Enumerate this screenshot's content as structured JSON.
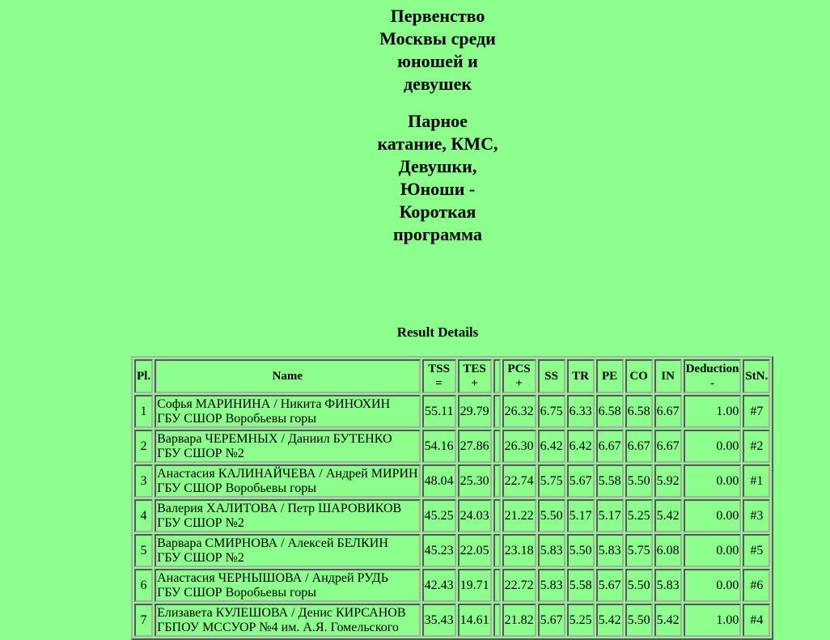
{
  "title": "Первенство Москвы среди юношей и девушек",
  "subtitle": "Парное катание, КМС, Девушки, Юноши - Короткая программа",
  "section": "Result Details",
  "columns": [
    {
      "label": "Pl.",
      "sub": ""
    },
    {
      "label": "Name",
      "sub": ""
    },
    {
      "label": "TSS",
      "sub": "="
    },
    {
      "label": "TES",
      "sub": "+"
    },
    {
      "label": "",
      "sub": ""
    },
    {
      "label": "PCS",
      "sub": "+"
    },
    {
      "label": "SS",
      "sub": ""
    },
    {
      "label": "TR",
      "sub": ""
    },
    {
      "label": "PE",
      "sub": ""
    },
    {
      "label": "CO",
      "sub": ""
    },
    {
      "label": "IN",
      "sub": ""
    },
    {
      "label": "Deduction",
      "sub": "-"
    },
    {
      "label": "StN.",
      "sub": ""
    }
  ],
  "rows": [
    {
      "pl": "1",
      "name": "Софья МАРИНИНА / Никита ФИНОХИН",
      "club": "ГБУ СШОР Воробьевы горы",
      "tss": "55.11",
      "tes": "29.79",
      "pcs": "26.32",
      "ss": "6.75",
      "tr": "6.33",
      "pe": "6.58",
      "co": "6.58",
      "in": "6.67",
      "ded": "1.00",
      "stn": "#7"
    },
    {
      "pl": "2",
      "name": "Варвара ЧЕРЕМНЫХ / Даниил БУТЕНКО",
      "club": "ГБУ СШОР №2",
      "tss": "54.16",
      "tes": "27.86",
      "pcs": "26.30",
      "ss": "6.42",
      "tr": "6.42",
      "pe": "6.67",
      "co": "6.67",
      "in": "6.67",
      "ded": "0.00",
      "stn": "#2"
    },
    {
      "pl": "3",
      "name": "Анастасия КАЛИНАЙЧЕВА / Андрей МИРИН",
      "club": "ГБУ СШОР Воробьевы горы",
      "tss": "48.04",
      "tes": "25.30",
      "pcs": "22.74",
      "ss": "5.75",
      "tr": "5.67",
      "pe": "5.58",
      "co": "5.50",
      "in": "5.92",
      "ded": "0.00",
      "stn": "#1"
    },
    {
      "pl": "4",
      "name": "Валерия ХАЛИТОВА / Петр ШАРОВИКОВ",
      "club": "ГБУ СШОР №2",
      "tss": "45.25",
      "tes": "24.03",
      "pcs": "21.22",
      "ss": "5.50",
      "tr": "5.17",
      "pe": "5.17",
      "co": "5.25",
      "in": "5.42",
      "ded": "0.00",
      "stn": "#3"
    },
    {
      "pl": "5",
      "name": "Варвара СМИРНОВА / Алексей БЕЛКИН",
      "club": "ГБУ СШОР №2",
      "tss": "45.23",
      "tes": "22.05",
      "pcs": "23.18",
      "ss": "5.83",
      "tr": "5.50",
      "pe": "5.83",
      "co": "5.75",
      "in": "6.08",
      "ded": "0.00",
      "stn": "#5"
    },
    {
      "pl": "6",
      "name": "Анастасия ЧЕРНЫШОВА / Андрей РУДЬ",
      "club": "ГБУ СШОР Воробьевы горы",
      "tss": "42.43",
      "tes": "19.71",
      "pcs": "22.72",
      "ss": "5.83",
      "tr": "5.58",
      "pe": "5.67",
      "co": "5.50",
      "in": "5.83",
      "ded": "0.00",
      "stn": "#6"
    },
    {
      "pl": "7",
      "name": "Елизавета КУЛЕШОВА / Денис КИРСАНОВ",
      "club": "ГБПОУ МССУОР №4 им. А.Я. Гомельского",
      "tss": "35.43",
      "tes": "14.61",
      "pcs": "21.82",
      "ss": "5.67",
      "tr": "5.25",
      "pe": "5.42",
      "co": "5.50",
      "in": "5.42",
      "ded": "1.00",
      "stn": "#4"
    }
  ]
}
